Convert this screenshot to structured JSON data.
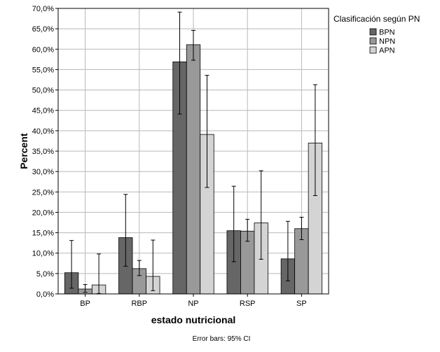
{
  "chart_data": {
    "type": "bar",
    "xlabel": "estado nutricional",
    "ylabel": "Percent",
    "categories": [
      "BP",
      "RBP",
      "NP",
      "RSP",
      "SP"
    ],
    "ylim": [
      0,
      70
    ],
    "yticks": [
      0,
      5,
      10,
      15,
      20,
      25,
      30,
      35,
      40,
      45,
      50,
      55,
      60,
      65,
      70
    ],
    "ytick_labels": [
      "0,0%",
      "5,0%",
      "10,0%",
      "15,0%",
      "20,0%",
      "25,0%",
      "30,0%",
      "35,0%",
      "40,0%",
      "45,0%",
      "50,0%",
      "55,0%",
      "60,0%",
      "65,0%",
      "70,0%"
    ],
    "grid": true,
    "legend": {
      "title": "Clasificación según PN",
      "position": "top-right"
    },
    "series": [
      {
        "name": "BPN",
        "color": "#666666",
        "values": [
          5.2,
          13.8,
          56.9,
          15.5,
          8.6
        ],
        "ci_low": [
          1.4,
          6.8,
          44.1,
          7.9,
          3.2
        ],
        "ci_high": [
          13.1,
          24.4,
          69.1,
          26.4,
          17.8
        ]
      },
      {
        "name": "NPN",
        "color": "#999999",
        "values": [
          1.2,
          6.2,
          61.1,
          15.4,
          16.0
        ],
        "ci_low": [
          0.4,
          4.5,
          57.3,
          12.9,
          13.3
        ],
        "ci_high": [
          2.3,
          8.2,
          64.6,
          18.3,
          18.8
        ]
      },
      {
        "name": "APN",
        "color": "#d4d4d4",
        "values": [
          2.2,
          4.3,
          39.1,
          17.4,
          37.0
        ],
        "ci_low": [
          0.1,
          0.8,
          26.1,
          8.5,
          24.1
        ],
        "ci_high": [
          9.8,
          13.2,
          53.6,
          30.2,
          51.3
        ]
      }
    ],
    "footnote": "Error bars: 95% CI"
  }
}
